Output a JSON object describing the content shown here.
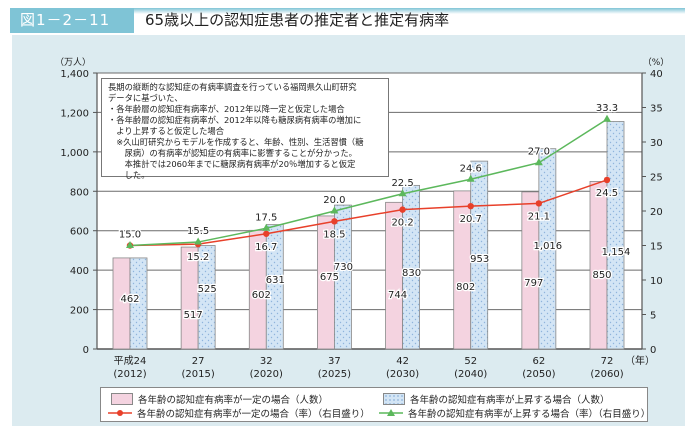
{
  "header": {
    "figure_number": "図1－2－11",
    "title": "65歳以上の認知症患者の推定者と推定有病率"
  },
  "note": {
    "lines": [
      "長期の縦断的な認知症の有病率調査を行っている福岡県久山町研究",
      "データに基づいた、",
      "・各年齢層の認知症有病率が、2012年以降一定と仮定した場合",
      "・各年齢層の認知症有病率が、2012年以降も糖尿病有病率の増加に",
      "　より上昇すると仮定した場合",
      "　※久山町研究からモデルを作成すると、年齢、性別、生活習慣（糖",
      "　　尿病）の有病率が認知症の有病率に影響することが分かった。",
      "　　本推計では2060年までに糖尿病有病率が20％増加すると仮定",
      "　　した。"
    ]
  },
  "colors": {
    "pink_bar": "#f4d3e0",
    "blue_bar": "#d3e5f5",
    "red_line": "#e8402a",
    "green_line": "#5cb85c",
    "panel_bg": "#dcebf0",
    "title_tab": "#7fc4d6"
  },
  "chart_data": {
    "type": "bar+line",
    "title": "65歳以上の認知症患者の推定者と推定有病率",
    "ylabel_left": "（万人）",
    "ylabel_right": "（%）",
    "xlabel": "（年）",
    "ylim_left": [
      0,
      1400
    ],
    "ylim_right": [
      0,
      40
    ],
    "yticks_left": [
      "0",
      "200",
      "400",
      "600",
      "800",
      "1,000",
      "1,200",
      "1,400"
    ],
    "yticks_right": [
      "0",
      "5",
      "10",
      "15",
      "20",
      "25",
      "30",
      "35",
      "40"
    ],
    "categories": [
      {
        "line1": "平成24",
        "line2": "(2012)"
      },
      {
        "line1": "27",
        "line2": "(2015)"
      },
      {
        "line1": "32",
        "line2": "(2020)"
      },
      {
        "line1": "37",
        "line2": "(2025)"
      },
      {
        "line1": "42",
        "line2": "(2030)"
      },
      {
        "line1": "52",
        "line2": "(2040)"
      },
      {
        "line1": "62",
        "line2": "(2050)"
      },
      {
        "line1": "72",
        "line2": "(2060)"
      }
    ],
    "grid": true,
    "legend_position": "bottom",
    "series": [
      {
        "name": "各年齢の認知症有病率が一定の場合（人数）",
        "kind": "bar",
        "axis": "left",
        "values": [
          462,
          517,
          602,
          675,
          744,
          802,
          797,
          850
        ],
        "labels": [
          "462",
          "517",
          "602",
          "675",
          "744",
          "802",
          "797",
          "850"
        ]
      },
      {
        "name": "各年齢の認知症有病率が上昇する場合（人数）",
        "kind": "bar",
        "axis": "left",
        "values": [
          462,
          525,
          631,
          730,
          830,
          953,
          1016,
          1154
        ],
        "labels": [
          "",
          "525",
          "631",
          "730",
          "830",
          "953",
          "1,016",
          "1,154"
        ]
      },
      {
        "name": "各年齢の認知症有病率が一定の場合（率）（右目盛り）",
        "kind": "line",
        "axis": "right",
        "values": [
          15.0,
          15.2,
          16.7,
          18.5,
          20.2,
          20.7,
          21.1,
          24.5
        ],
        "labels": [
          "",
          "15.2",
          "16.7",
          "18.5",
          "20.2",
          "20.7",
          "21.1",
          "24.5"
        ]
      },
      {
        "name": "各年齢の認知症有病率が上昇する場合（率）（右目盛り）",
        "kind": "line",
        "axis": "right",
        "values": [
          15.0,
          15.5,
          17.5,
          20.0,
          22.5,
          24.6,
          27.0,
          33.3
        ],
        "labels": [
          "15.0",
          "15.5",
          "17.5",
          "20.0",
          "22.5",
          "24.6",
          "27.0",
          "33.3"
        ]
      }
    ]
  }
}
